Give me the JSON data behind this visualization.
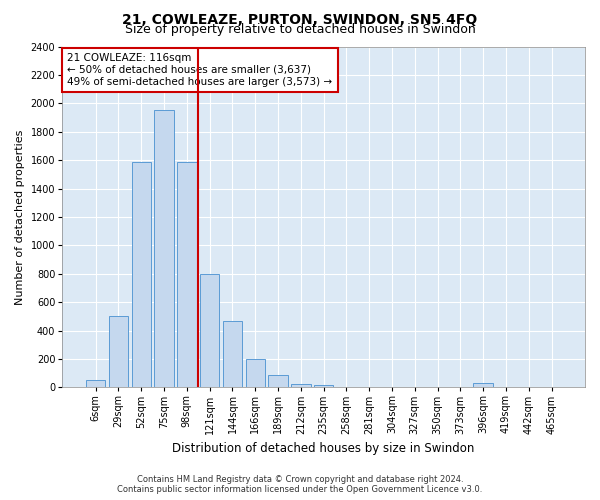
{
  "title": "21, COWLEAZE, PURTON, SWINDON, SN5 4FQ",
  "subtitle": "Size of property relative to detached houses in Swindon",
  "xlabel": "Distribution of detached houses by size in Swindon",
  "ylabel": "Number of detached properties",
  "footer_line1": "Contains HM Land Registry data © Crown copyright and database right 2024.",
  "footer_line2": "Contains public sector information licensed under the Open Government Licence v3.0.",
  "annotation_line1": "21 COWLEAZE: 116sqm",
  "annotation_line2": "← 50% of detached houses are smaller (3,637)",
  "annotation_line3": "49% of semi-detached houses are larger (3,573) →",
  "bar_color": "#c5d8ee",
  "bar_edge_color": "#5b9bd5",
  "vline_color": "#cc0000",
  "annotation_box_color": "#cc0000",
  "background_color": "#dce9f5",
  "fig_background_color": "#ffffff",
  "categories": [
    "6sqm",
    "29sqm",
    "52sqm",
    "75sqm",
    "98sqm",
    "121sqm",
    "144sqm",
    "166sqm",
    "189sqm",
    "212sqm",
    "235sqm",
    "258sqm",
    "281sqm",
    "304sqm",
    "327sqm",
    "350sqm",
    "373sqm",
    "396sqm",
    "419sqm",
    "442sqm",
    "465sqm"
  ],
  "values": [
    50,
    500,
    1590,
    1950,
    1590,
    800,
    470,
    200,
    90,
    25,
    20,
    5,
    0,
    0,
    0,
    0,
    0,
    28,
    0,
    0,
    0
  ],
  "ylim": [
    0,
    2400
  ],
  "yticks": [
    0,
    200,
    400,
    600,
    800,
    1000,
    1200,
    1400,
    1600,
    1800,
    2000,
    2200,
    2400
  ],
  "vline_x_index": 4.5,
  "grid_color": "#ffffff",
  "title_fontsize": 10,
  "subtitle_fontsize": 9,
  "tick_fontsize": 7,
  "ylabel_fontsize": 8,
  "xlabel_fontsize": 8.5,
  "annotation_fontsize": 7.5,
  "footer_fontsize": 6
}
